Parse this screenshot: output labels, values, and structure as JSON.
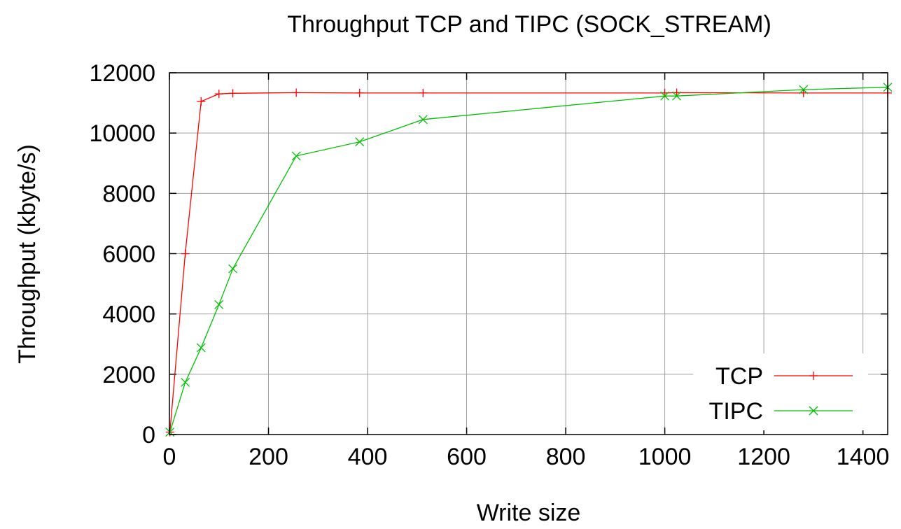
{
  "chart_data": {
    "type": "line",
    "title": "Throughput TCP and TIPC (SOCK_STREAM)",
    "xlabel": "Write size",
    "ylabel": "Throughput (kbyte/s)",
    "xlim": [
      0,
      1450
    ],
    "ylim": [
      0,
      12000
    ],
    "xticks": [
      0,
      200,
      400,
      600,
      800,
      1000,
      1200,
      1400
    ],
    "yticks": [
      0,
      2000,
      4000,
      6000,
      8000,
      10000,
      12000
    ],
    "grid": true,
    "legend_position": "bottom-right",
    "series": [
      {
        "name": "TCP",
        "color": "#ff0000",
        "marker": "plus",
        "points": [
          [
            1,
            80
          ],
          [
            32,
            6000
          ],
          [
            64,
            11050
          ],
          [
            100,
            11300
          ],
          [
            128,
            11320
          ],
          [
            256,
            11340
          ],
          [
            384,
            11330
          ],
          [
            512,
            11330
          ],
          [
            1000,
            11330
          ],
          [
            1024,
            11340
          ],
          [
            1280,
            11330
          ],
          [
            1450,
            11330
          ]
        ]
      },
      {
        "name": "TIPC",
        "color": "#00c000",
        "marker": "cross",
        "points": [
          [
            1,
            80
          ],
          [
            32,
            1730
          ],
          [
            64,
            2880
          ],
          [
            100,
            4310
          ],
          [
            128,
            5500
          ],
          [
            256,
            9240
          ],
          [
            384,
            9710
          ],
          [
            512,
            10450
          ],
          [
            1000,
            11230
          ],
          [
            1024,
            11230
          ],
          [
            1280,
            11440
          ],
          [
            1450,
            11520
          ]
        ]
      }
    ]
  }
}
